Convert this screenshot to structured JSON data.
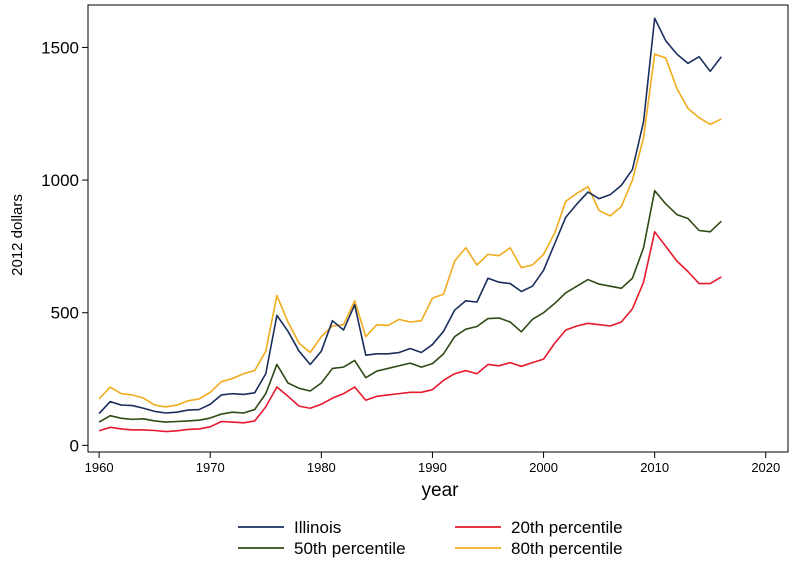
{
  "chart_data": {
    "type": "line",
    "title": "",
    "xlabel": "year",
    "ylabel": "2012 dollars",
    "xlim": [
      1959,
      2022
    ],
    "ylim": [
      -25,
      1660
    ],
    "xticks": [
      1960,
      1970,
      1980,
      1990,
      2000,
      2010,
      2020
    ],
    "yticks": [
      0,
      500,
      1000,
      1500
    ],
    "x": [
      1960,
      1961,
      1962,
      1963,
      1964,
      1965,
      1966,
      1967,
      1968,
      1969,
      1970,
      1971,
      1972,
      1973,
      1974,
      1975,
      1976,
      1977,
      1978,
      1979,
      1980,
      1981,
      1982,
      1983,
      1984,
      1985,
      1986,
      1987,
      1988,
      1989,
      1990,
      1991,
      1992,
      1993,
      1994,
      1995,
      1996,
      1997,
      1998,
      1999,
      2000,
      2001,
      2002,
      2003,
      2004,
      2005,
      2006,
      2007,
      2008,
      2009,
      2010,
      2011,
      2012,
      2013,
      2014,
      2015,
      2016
    ],
    "series": [
      {
        "name": "Illinois",
        "color": "#1a2e5e",
        "values": [
          120,
          165,
          152,
          150,
          140,
          128,
          122,
          125,
          133,
          135,
          155,
          190,
          195,
          192,
          198,
          270,
          490,
          430,
          355,
          305,
          355,
          470,
          435,
          530,
          340,
          345,
          345,
          350,
          365,
          350,
          380,
          430,
          510,
          545,
          540,
          630,
          615,
          610,
          580,
          600,
          660,
          760,
          860,
          910,
          955,
          930,
          945,
          980,
          1040,
          1220,
          1610,
          1525,
          1475,
          1440,
          1465,
          1410,
          1465
        ]
      },
      {
        "name": "20th percentile",
        "color": "#e8192c",
        "values": [
          55,
          68,
          62,
          58,
          58,
          56,
          52,
          55,
          60,
          62,
          70,
          90,
          88,
          85,
          92,
          145,
          220,
          185,
          148,
          140,
          155,
          178,
          195,
          220,
          170,
          185,
          190,
          195,
          200,
          200,
          210,
          245,
          270,
          282,
          270,
          305,
          300,
          312,
          298,
          312,
          325,
          385,
          435,
          450,
          460,
          455,
          450,
          465,
          515,
          615,
          805,
          750,
          695,
          655,
          610,
          610,
          635
        ]
      },
      {
        "name": "50th percentile",
        "color": "#2e4a16",
        "values": [
          88,
          112,
          102,
          98,
          100,
          92,
          88,
          90,
          92,
          95,
          103,
          118,
          125,
          122,
          135,
          195,
          305,
          235,
          215,
          205,
          235,
          290,
          295,
          320,
          255,
          280,
          290,
          300,
          310,
          295,
          308,
          345,
          410,
          438,
          448,
          478,
          480,
          465,
          428,
          475,
          500,
          535,
          575,
          600,
          625,
          608,
          600,
          592,
          630,
          745,
          960,
          910,
          870,
          855,
          810,
          805,
          845
        ]
      },
      {
        "name": "80th percentile",
        "color": "#f0ac1c",
        "values": [
          175,
          220,
          195,
          190,
          178,
          152,
          145,
          152,
          168,
          175,
          200,
          240,
          252,
          270,
          282,
          355,
          565,
          465,
          385,
          350,
          410,
          450,
          455,
          545,
          410,
          455,
          452,
          475,
          465,
          470,
          555,
          570,
          695,
          745,
          680,
          720,
          715,
          745,
          670,
          680,
          720,
          800,
          920,
          950,
          975,
          885,
          865,
          900,
          1000,
          1160,
          1475,
          1460,
          1345,
          1270,
          1235,
          1210,
          1230
        ]
      }
    ],
    "legend": {
      "position": "bottom",
      "columns": 2,
      "order": [
        "Illinois",
        "20th percentile",
        "50th percentile",
        "80th percentile"
      ]
    }
  }
}
